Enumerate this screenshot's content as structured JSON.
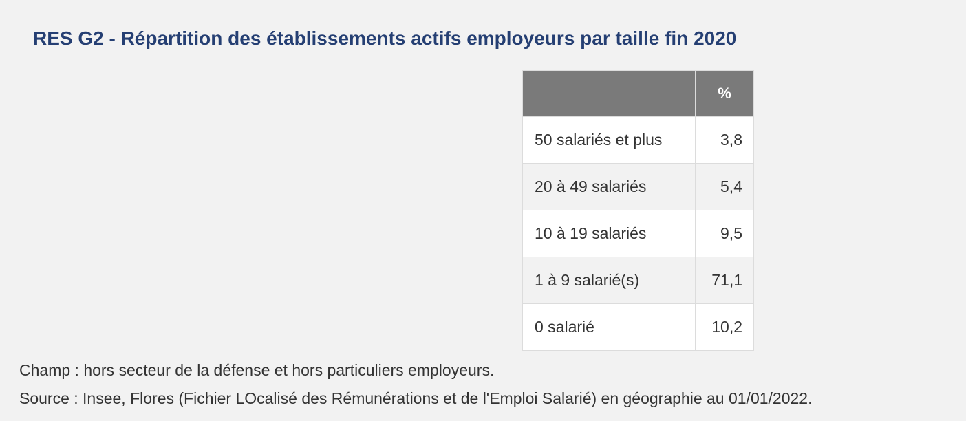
{
  "title": "RES G2 - Répartition des établissements actifs employeurs par taille fin 2020",
  "chart_data": {
    "type": "table",
    "title": "RES G2 - Répartition des établissements actifs employeurs par taille fin 2020",
    "columns": [
      "",
      "%"
    ],
    "rows": [
      {
        "category": "50 salariés et plus",
        "value": "3,8"
      },
      {
        "category": "20 à 49 salariés",
        "value": "5,4"
      },
      {
        "category": "10 à 19 salariés",
        "value": "9,5"
      },
      {
        "category": "1 à 9 salarié(s)",
        "value": "71,1"
      },
      {
        "category": "0 salarié",
        "value": "10,2"
      }
    ]
  },
  "notes": {
    "champ": "Champ : hors secteur de la défense et hors particuliers employeurs.",
    "source": "Source : Insee, Flores (Fichier LOcalisé des Rémunérations et de l'Emploi Salarié) en géographie au 01/01/2022."
  },
  "colors": {
    "title": "#253f73",
    "header_background": "#7a7a7a",
    "row_odd": "#ffffff",
    "row_even": "#f2f2f2",
    "page_background": "#f2f2f2"
  }
}
